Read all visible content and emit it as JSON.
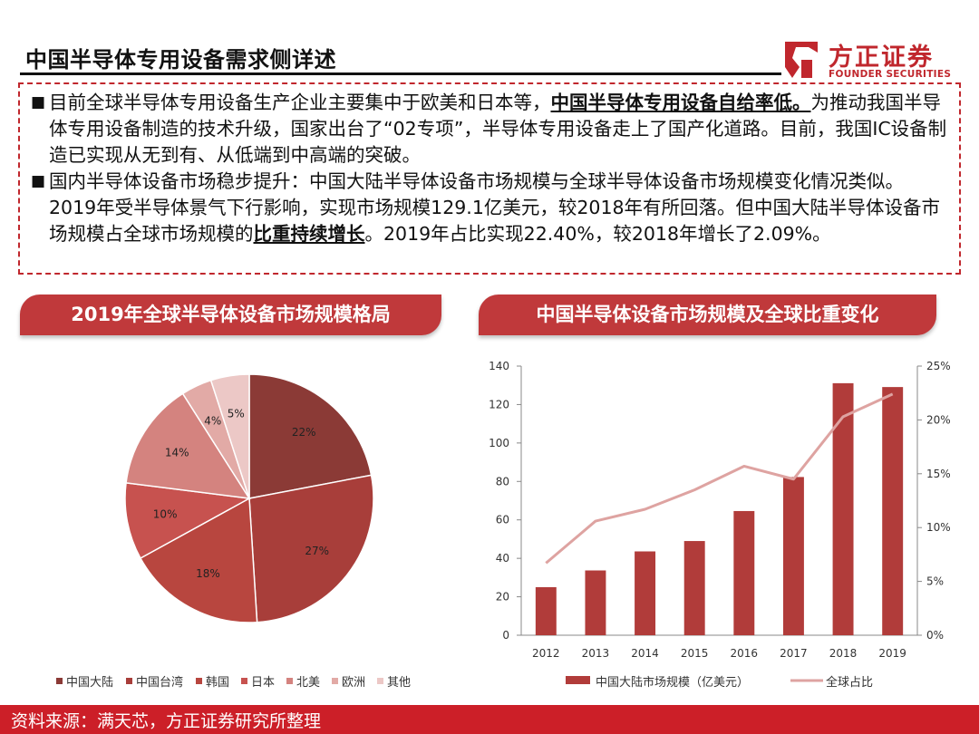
{
  "page": {
    "title": "中国半导体专用设备需求侧详述",
    "logo": {
      "cn": "方正证券",
      "en": "FOUNDER SECURITIES"
    },
    "bullet_glyph": "■",
    "para1": {
      "pre": "目前全球半导体专用设备生产企业主要集中于欧美和日本等，",
      "bold": "中国半导体专用设备自给率低。",
      "post": "为推动我国半导体专用设备制造的技术升级，国家出台了“02专项”，半导体专用设备走上了国产化道路。目前，我国IC设备制造已实现从无到有、从低端到中高端的突破。"
    },
    "para2": {
      "pre": "国内半导体设备市场稳步提升：中国大陆半导体设备市场规模与全球半导体设备市场规模变化情况类似。2019年受半导体景气下行影响，实现市场规模129.1亿美元，较2018年有所回落。但中国大陆半导体设备市场规模占全球市场规模的",
      "bold": "比重持续增长",
      "post": "。2019年占比实现22.40%，较2018年增长了2.09%。"
    },
    "left_tab": "2019年全球半导体设备市场规模格局",
    "right_tab": "中国半导体设备市场规模及全球比重变化",
    "footer": "资料来源：满天芯，方正证券研究所整理"
  },
  "chart_data": [
    {
      "type": "pie",
      "title": "2019年全球半导体设备市场规模格局",
      "labels": [
        "中国大陆",
        "中国台湾",
        "韩国",
        "日本",
        "北美",
        "欧洲",
        "其他"
      ],
      "values": [
        22,
        27,
        18,
        10,
        14,
        4,
        5
      ],
      "value_labels": [
        "22%",
        "27%",
        "18%",
        "10%",
        "14%",
        "4%",
        "5%"
      ],
      "colors": [
        "#8b3a36",
        "#a83e3a",
        "#b8463f",
        "#c7524f",
        "#d4837f",
        "#e2aaa6",
        "#ecc8c6"
      ],
      "legend_position": "bottom"
    },
    {
      "type": "bar+line",
      "title": "中国半导体设备市场规模及全球比重变化",
      "categories": [
        "2012",
        "2013",
        "2014",
        "2015",
        "2016",
        "2017",
        "2018",
        "2019"
      ],
      "series": [
        {
          "name": "中国大陆市场规模（亿美元）",
          "type": "bar",
          "axis": "left",
          "color": "#b13c3a",
          "values": [
            25,
            33.7,
            43.6,
            49,
            64.6,
            82.3,
            131.1,
            129.1
          ]
        },
        {
          "name": "全球占比",
          "type": "line",
          "axis": "right",
          "color": "#dea3a1",
          "values": [
            6.7,
            10.6,
            11.7,
            13.5,
            15.7,
            14.5,
            20.3,
            22.4
          ]
        }
      ],
      "y_left": {
        "min": 0,
        "max": 140,
        "ticks": [
          "0",
          "20",
          "40",
          "60",
          "80",
          "100",
          "120",
          "140"
        ]
      },
      "y_right": {
        "min": 0,
        "max": 25,
        "ticks": [
          "0%",
          "5%",
          "10%",
          "15%",
          "20%",
          "25%"
        ]
      },
      "legend_position": "bottom"
    }
  ]
}
